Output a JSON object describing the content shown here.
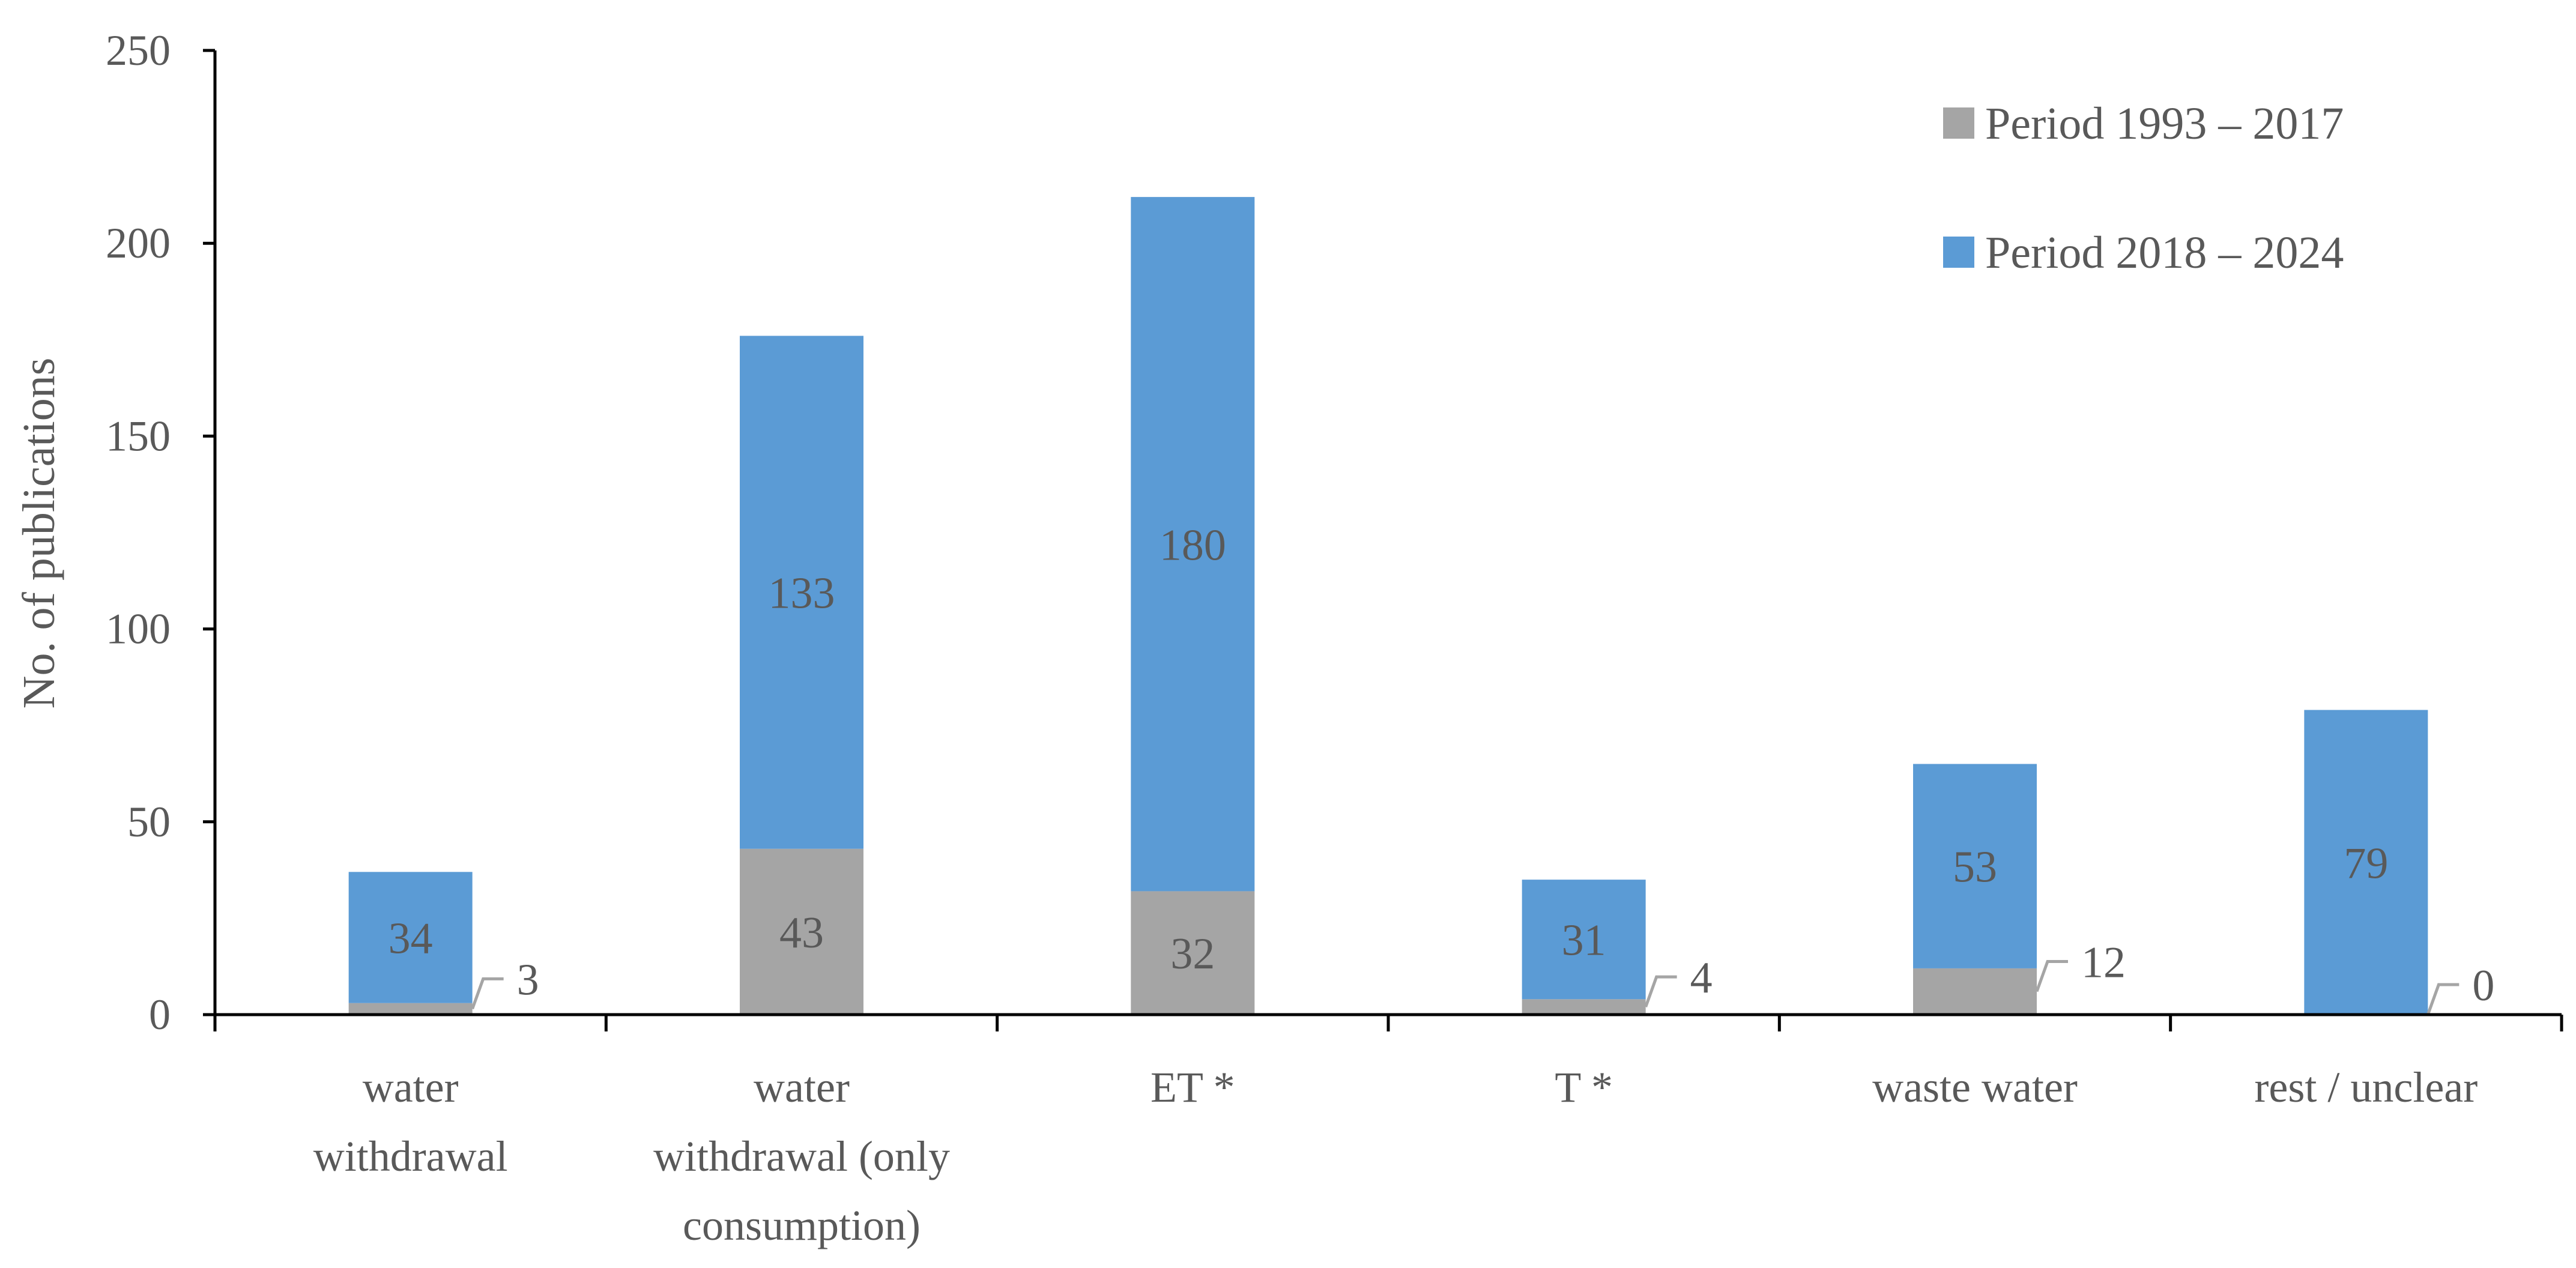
{
  "chart_data": {
    "type": "bar",
    "stacked": true,
    "categories": [
      [
        "water",
        "withdrawal"
      ],
      [
        "water",
        "withdrawal (only",
        "consumption)"
      ],
      [
        "ET *"
      ],
      [
        "T *"
      ],
      [
        "waste water"
      ],
      [
        "rest / unclear"
      ]
    ],
    "series": [
      {
        "name": "Period 1993 – 2017",
        "color": "#a5a5a5",
        "values": [
          3,
          43,
          32,
          4,
          12,
          0
        ]
      },
      {
        "name": "Period 2018 – 2024",
        "color": "#5b9bd5",
        "values": [
          34,
          133,
          180,
          31,
          53,
          79
        ]
      }
    ],
    "title": "",
    "xlabel": "",
    "ylabel": "No. of publications",
    "ylim": [
      0,
      250
    ],
    "yticks": [
      0,
      50,
      100,
      150,
      200,
      250
    ],
    "grid": false,
    "legend_position": "top-right",
    "label_colors": {
      "axis_text": "#595959",
      "axis_line": "#000000",
      "leader_line": "#a5a5a5"
    }
  }
}
